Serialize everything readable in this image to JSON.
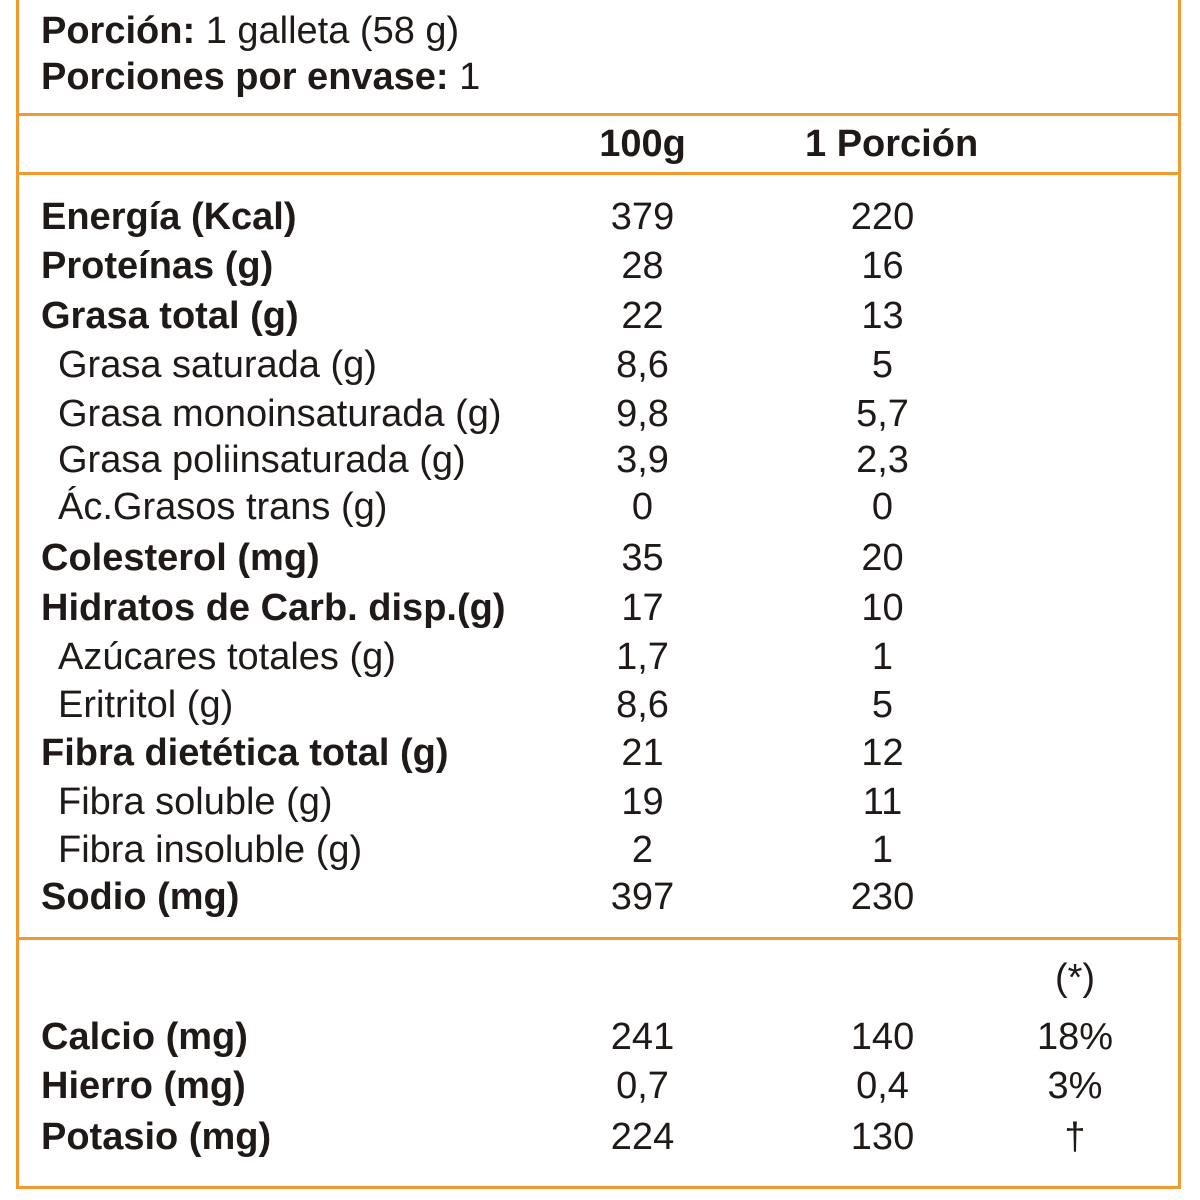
{
  "serving": {
    "portion_label": "Porción:",
    "portion_value": "1 galleta (58 g)",
    "per_package_label": "Porciones por envase:",
    "per_package_value": "1"
  },
  "columns": {
    "per100": "100g",
    "perPortion": "1 Porción"
  },
  "rows": [
    {
      "label": "Energía (Kcal)",
      "v100": "379",
      "vPortion": "220",
      "bold": true
    },
    {
      "label": "Proteínas (g)",
      "v100": "28",
      "vPortion": "16",
      "bold": true
    },
    {
      "label": "Grasa total (g)",
      "v100": "22",
      "vPortion": "13",
      "bold": true
    },
    {
      "label": "Grasa saturada (g)",
      "v100": "8,6",
      "vPortion": "5",
      "bold": false
    },
    {
      "label": "Grasa monoinsaturada (g)",
      "v100": "9,8",
      "vPortion": "5,7",
      "bold": false
    },
    {
      "label": "Grasa poliinsaturada (g)",
      "v100": "3,9",
      "vPortion": "2,3",
      "bold": false
    },
    {
      "label": "Ác.Grasos trans (g)",
      "v100": "0",
      "vPortion": "0",
      "bold": false
    },
    {
      "label": "Colesterol (mg)",
      "v100": "35",
      "vPortion": "20",
      "bold": true
    },
    {
      "label": "Hidratos de Carb. disp.(g)",
      "v100": "17",
      "vPortion": "10",
      "bold": true
    },
    {
      "label": "Azúcares totales (g)",
      "v100": "1,7",
      "vPortion": "1",
      "bold": false
    },
    {
      "label": "Eritritol (g)",
      "v100": "8,6",
      "vPortion": "5",
      "bold": false
    },
    {
      "label": "Fibra dietética total (g)",
      "v100": "21",
      "vPortion": "12",
      "bold": true
    },
    {
      "label": "Fibra soluble (g)",
      "v100": "19",
      "vPortion": "11",
      "bold": false
    },
    {
      "label": "Fibra insoluble (g)",
      "v100": "2",
      "vPortion": "1",
      "bold": false
    },
    {
      "label": "Sodio (mg)",
      "v100": "397",
      "vPortion": "230",
      "bold": true
    }
  ],
  "minerals": {
    "pct_header": "(*)",
    "rows": [
      {
        "label": "Calcio (mg)",
        "v100": "241",
        "vPortion": "140",
        "pct": "18%"
      },
      {
        "label": "Hierro (mg)",
        "v100": "0,7",
        "vPortion": "0,4",
        "pct": "3%"
      },
      {
        "label": "Potasio (mg)",
        "v100": "224",
        "vPortion": "130",
        "pct": "†"
      }
    ]
  },
  "colors": {
    "border": "#f29a2e",
    "text": "#1f1a17"
  }
}
